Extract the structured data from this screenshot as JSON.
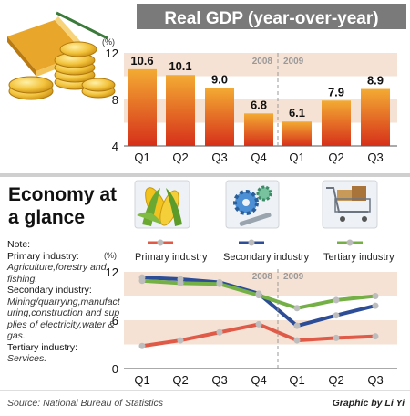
{
  "top": {
    "title": "Real GDP (year-over-year)",
    "unit": "(%)",
    "years": [
      "2008",
      "2009"
    ]
  },
  "bottom": {
    "title_line1": "Economy at",
    "title_line2": "a glance",
    "unit": "(%)",
    "years": [
      "2008",
      "2009"
    ],
    "legend": [
      "Primary industry",
      "Secondary industry",
      "Tertiary industry"
    ]
  },
  "note": {
    "label": "Note:",
    "items": [
      {
        "heading": "Primary industry:",
        "text": "Agriculture,forestry and fishing."
      },
      {
        "heading": "Secondary industry:",
        "text": "Mining/quarrying,manufacturing,construction and supplies of electricity,water & gas."
      },
      {
        "heading": "Tertiary industry:",
        "text": "Services."
      }
    ]
  },
  "footer": {
    "source": "Source: National Bureau of Statistics",
    "credit": "Graphic by Li Yi"
  },
  "colors": {
    "title_bar": "#7a7a7a",
    "bar_top": "#f0a030",
    "bar_bottom": "#d42a14",
    "band": "#f6e2d4",
    "primary": "#e05a48",
    "secondary": "#2d4e97",
    "tertiary": "#74b045"
  },
  "icons": [
    "coins-book-icon",
    "corn-icon",
    "gears-wrench-icon",
    "shopping-cart-icon"
  ],
  "chart_data": [
    {
      "type": "bar",
      "title": "Real GDP (year-over-year)",
      "ylabel": "(%)",
      "categories": [
        "Q1",
        "Q2",
        "Q3",
        "Q4",
        "Q1",
        "Q2",
        "Q3"
      ],
      "periods": [
        "2008",
        "2008",
        "2008",
        "2008",
        "2009",
        "2009",
        "2009"
      ],
      "values": [
        10.6,
        10.1,
        9.0,
        6.8,
        6.1,
        7.9,
        8.9
      ],
      "value_labels": [
        "10.6",
        "10.1",
        "9.0",
        "6.8",
        "6.1",
        "7.9",
        "8.9"
      ],
      "ylim": [
        4,
        12
      ],
      "yticks": [
        4,
        8,
        12
      ],
      "grid": false
    },
    {
      "type": "line",
      "title": "",
      "ylabel": "(%)",
      "categories": [
        "Q1",
        "Q2",
        "Q3",
        "Q4",
        "Q1",
        "Q2",
        "Q3"
      ],
      "periods": [
        "2008",
        "2008",
        "2008",
        "2008",
        "2009",
        "2009",
        "2009"
      ],
      "ylim": [
        0,
        12
      ],
      "yticks": [
        0,
        6,
        12
      ],
      "legend_position": "top",
      "series": [
        {
          "name": "Primary industry",
          "values": [
            2.8,
            3.5,
            4.5,
            5.5,
            3.5,
            3.8,
            4.0
          ]
        },
        {
          "name": "Secondary industry",
          "values": [
            11.3,
            11.1,
            10.7,
            9.3,
            5.3,
            6.6,
            7.8
          ]
        },
        {
          "name": "Tertiary industry",
          "values": [
            10.9,
            10.6,
            10.5,
            9.1,
            7.5,
            8.5,
            9.0
          ]
        }
      ]
    }
  ]
}
